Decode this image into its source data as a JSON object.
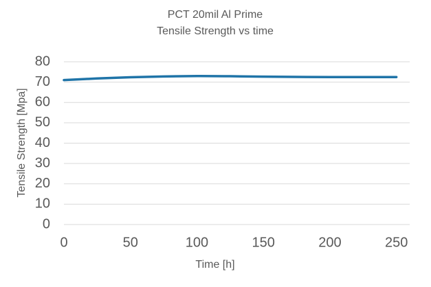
{
  "chart_data": {
    "type": "line",
    "title": "PCT 20mil Al Prime",
    "subtitle": "Tensile Strength vs time",
    "x_label": "Time [h]",
    "y_label": "Tensile Strength [Mpa]",
    "x": [
      0,
      25,
      50,
      75,
      100,
      125,
      150,
      200,
      250
    ],
    "series": [
      {
        "name": "Tensile Strength",
        "color": "#1f74a8",
        "values": [
          71,
          71.8,
          72.4,
          72.8,
          73,
          72.9,
          72.7,
          72.5,
          72.5
        ]
      }
    ],
    "xlim": [
      0,
      260
    ],
    "xticks": [
      0,
      50,
      100,
      150,
      200,
      250
    ],
    "ylim": [
      0,
      80
    ],
    "yticks": [
      0,
      10,
      20,
      30,
      40,
      50,
      60,
      70,
      80
    ],
    "grid": true
  }
}
